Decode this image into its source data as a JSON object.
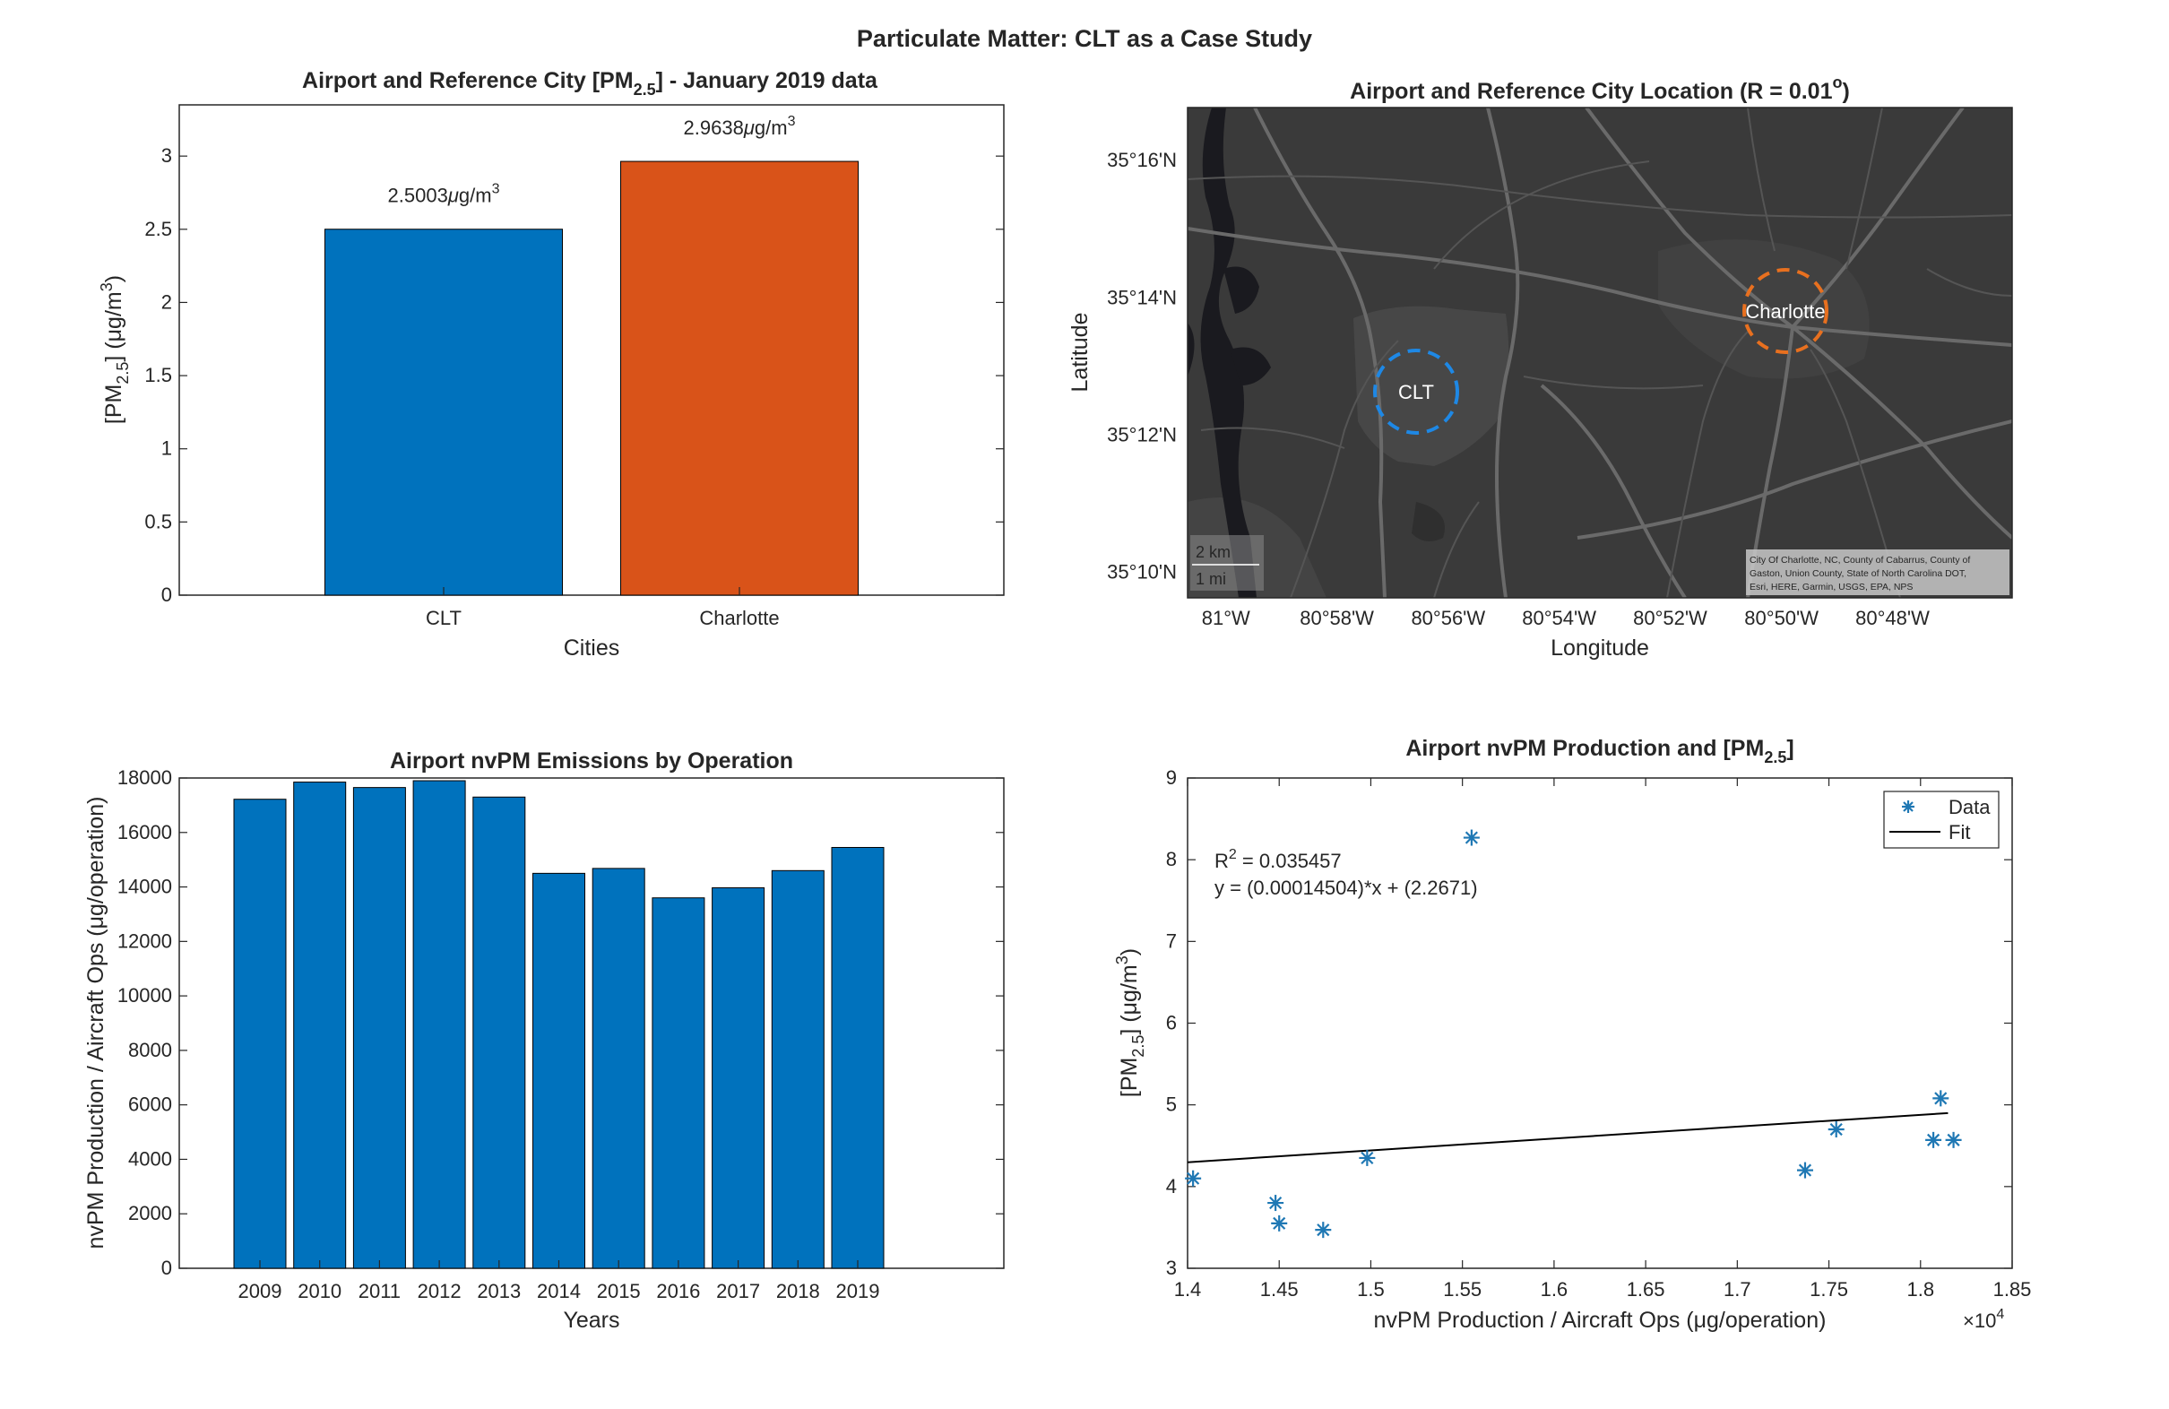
{
  "figure": {
    "suptitle": "Particulate Matter: CLT as a Case Study"
  },
  "colors": {
    "blue": "#0072BD",
    "orange": "#D95319",
    "scatter": "#1f78b4",
    "map_bg": "#3a3a3a",
    "axes": "#262626"
  },
  "chart_data": [
    {
      "id": "pm-bar",
      "type": "bar",
      "title_pre": "Airport and Reference City [PM",
      "title_sub": "2.5",
      "title_post": "] - January 2019 data",
      "categories": [
        "CLT",
        "Charlotte"
      ],
      "values": [
        2.5003,
        2.9638
      ],
      "bar_labels": [
        "2.5003",
        "2.9638"
      ],
      "label_unit_mu": "μ",
      "label_unit_rest": "g/m",
      "label_unit_sup": "3",
      "xlabel": "Cities",
      "ylabel_pre": "[PM",
      "ylabel_sub": "2.5",
      "ylabel_post": "] (μg/m",
      "ylabel_sup": "3",
      "ylabel_end": ")",
      "ylim": [
        0,
        3.35
      ],
      "yticks": [
        0,
        0.5,
        1,
        1.5,
        2,
        2.5,
        3
      ],
      "ytick_labels": [
        "0",
        "0.5",
        "1",
        "1.5",
        "2",
        "2.5",
        "3"
      ],
      "colors": [
        "#0072BD",
        "#D95319"
      ]
    },
    {
      "id": "location-map",
      "type": "map",
      "title_pre": "Airport and Reference City Location (R = 0.01",
      "title_sup": "o",
      "title_post": ")",
      "xlabel": "Longitude",
      "ylabel": "Latitude",
      "xticks": [
        -81.0,
        -80.9667,
        -80.9333,
        -80.9,
        -80.8667,
        -80.8333,
        -80.8
      ],
      "xtick_labels": [
        "81°W",
        "80°58'W",
        "80°56'W",
        "80°54'W",
        "80°52'W",
        "80°50'W",
        "80°48'W"
      ],
      "yticks": [
        35.1667,
        35.2,
        35.2333,
        35.2667
      ],
      "ytick_labels": [
        "35°10'N",
        "35°12'N",
        "35°14'N",
        "35°16'N"
      ],
      "xlim": [
        -81.0115,
        -80.7641
      ],
      "ylim": [
        35.1605,
        35.2795
      ],
      "points": [
        {
          "name": "CLT",
          "lon": -80.9431,
          "lat": 35.2144,
          "radius": 0.01,
          "color": "#0072BD"
        },
        {
          "name": "Charlotte",
          "lon": -80.8431,
          "lat": 35.2271,
          "radius": 0.01,
          "color": "#D95319"
        }
      ],
      "scalebar": {
        "km": "2 km",
        "mi": "1 mi"
      },
      "attribution": [
        "City Of Charlotte, NC, County of Cabarrus, County of",
        "Gaston, Union County, State of North Carolina DOT,",
        "Esri, HERE, Garmin, USGS, EPA, NPS"
      ]
    },
    {
      "id": "nvpm-bar",
      "type": "bar",
      "title": "Airport nvPM Emissions by Operation",
      "categories": [
        "2009",
        "2010",
        "2011",
        "2012",
        "2013",
        "2014",
        "2015",
        "2016",
        "2017",
        "2018",
        "2019"
      ],
      "values": [
        17220,
        17850,
        17650,
        17900,
        17300,
        14500,
        14680,
        13600,
        13970,
        14600,
        15450
      ],
      "xlabel": "Years",
      "ylabel_pre": "nvPM Production / Aircraft Ops (",
      "ylabel_mu": "μ",
      "ylabel_post": "g/operation)",
      "ylim": [
        0,
        18000
      ],
      "yticks": [
        0,
        2000,
        4000,
        6000,
        8000,
        10000,
        12000,
        14000,
        16000,
        18000
      ],
      "ytick_labels": [
        "0",
        "2000",
        "4000",
        "6000",
        "8000",
        "10000",
        "12000",
        "14000",
        "16000",
        "18000"
      ],
      "color": "#0072BD"
    },
    {
      "id": "scatter-fit",
      "type": "scatter",
      "title_pre": "Airport nvPM Production and [PM",
      "title_sub": "2.5",
      "title_post": "]",
      "points": [
        {
          "x": 14030,
          "y": 4.1
        },
        {
          "x": 14480,
          "y": 3.8
        },
        {
          "x": 14500,
          "y": 3.55
        },
        {
          "x": 14740,
          "y": 3.47
        },
        {
          "x": 14980,
          "y": 4.35
        },
        {
          "x": 15550,
          "y": 8.27
        },
        {
          "x": 17370,
          "y": 4.2
        },
        {
          "x": 17540,
          "y": 4.7
        },
        {
          "x": 18070,
          "y": 4.57
        },
        {
          "x": 18110,
          "y": 5.08
        },
        {
          "x": 18180,
          "y": 4.57
        }
      ],
      "fit": {
        "slope": 0.00014504,
        "intercept": 2.2671,
        "x_range": [
          14000,
          18150
        ]
      },
      "r2_pre": "R",
      "r2_sup": "2",
      "r2_post": " = 0.035457",
      "equation": "y = (0.00014504)*x + (2.2671)",
      "legend": [
        "Data",
        "Fit"
      ],
      "legend_position": "top-right",
      "xlabel_pre": "nvPM Production / Aircraft Ops (",
      "xlabel_mu": "μ",
      "xlabel_post": "g/operation)",
      "ylabel_pre": "[PM",
      "ylabel_sub": "2.5",
      "ylabel_post": "] (μg/m",
      "ylabel_sup": "3",
      "ylabel_end": ")",
      "xlim": [
        14000,
        18500
      ],
      "ylim": [
        3,
        9
      ],
      "xticks": [
        14000,
        14500,
        15000,
        15500,
        16000,
        16500,
        17000,
        17500,
        18000,
        18500
      ],
      "xtick_labels": [
        "1.4",
        "1.45",
        "1.5",
        "1.55",
        "1.6",
        "1.65",
        "1.7",
        "1.75",
        "1.8",
        "1.85"
      ],
      "yticks": [
        3,
        4,
        5,
        6,
        7,
        8,
        9
      ],
      "ytick_labels": [
        "3",
        "4",
        "5",
        "6",
        "7",
        "8",
        "9"
      ],
      "exponent_pre": "×10",
      "exponent_sup": "4"
    }
  ]
}
